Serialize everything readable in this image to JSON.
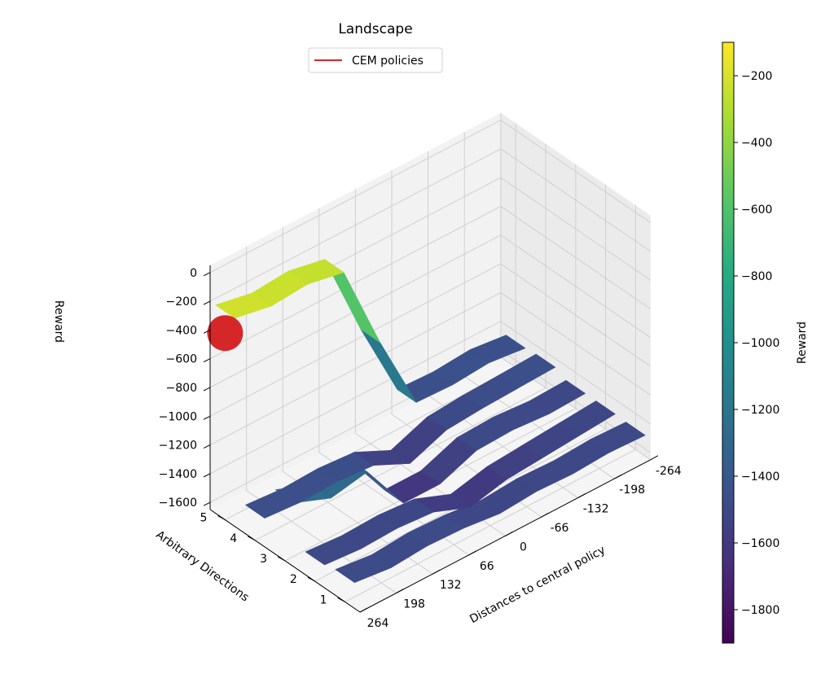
{
  "chart_data": {
    "type": "surface3d",
    "title": "Landscape",
    "legend": [
      {
        "label": "CEM policies",
        "color": "#d62728"
      }
    ],
    "legend_position": "top-center",
    "x_axis": {
      "label": "Distances to central policy",
      "ticks": [
        "264",
        "198",
        "132",
        "66",
        "0",
        "-66",
        "-132",
        "-198",
        "-264"
      ]
    },
    "y_axis": {
      "label": "Arbitrary Directions",
      "ticks": [
        "1",
        "2",
        "3",
        "4",
        "5"
      ]
    },
    "z_axis": {
      "label": "Reward",
      "ticks": [
        "0",
        "−200",
        "−400",
        "−600",
        "−800",
        "−1000",
        "−1200",
        "−1400",
        "−1600"
      ],
      "range": [
        -1650,
        50
      ]
    },
    "colorbar": {
      "label": "Reward",
      "colormap": "viridis",
      "range": [
        -1900,
        -100
      ],
      "ticks": [
        "−200",
        "−400",
        "−600",
        "−800",
        "−1000",
        "−1200",
        "−1400",
        "−1600",
        "−1800"
      ]
    },
    "grid": true,
    "distances": [
      264,
      198,
      132,
      66,
      0,
      -66,
      -132,
      -198,
      -264
    ],
    "series": [
      {
        "direction": 1,
        "rewards": [
          -1470,
          -1500,
          -1480,
          -1490,
          -1520,
          -1500,
          -1510,
          -1495,
          -1505
        ]
      },
      {
        "direction": 2,
        "rewards": [
          -1490,
          -1510,
          -1500,
          -1520,
          -1620,
          -1560,
          -1540,
          -1520,
          -1500
        ]
      },
      {
        "direction": 3,
        "rewards": [
          -1200,
          -1300,
          -1250,
          -1600,
          -1600,
          -1500,
          -1490,
          -1510,
          -1500
        ]
      },
      {
        "direction": 4,
        "rewards": [
          -1450,
          -1470,
          -1460,
          -1480,
          -1600,
          -1500,
          -1480,
          -1470,
          -1460
        ]
      },
      {
        "direction": 5,
        "rewards": [
          -200,
          -250,
          -230,
          -280,
          -900,
          -1450,
          -1460,
          -1440,
          -1470
        ]
      }
    ],
    "cem_policy_marker": {
      "direction": 5,
      "distance": 264,
      "reward": -350
    }
  }
}
